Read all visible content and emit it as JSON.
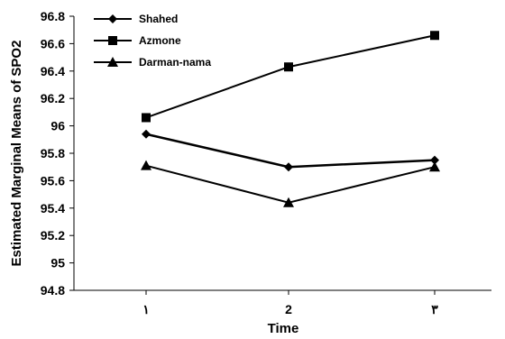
{
  "chart_data": {
    "type": "line",
    "categories": [
      "١",
      "2",
      "٣"
    ],
    "xlabel": "Time",
    "ylabel": "Estimated Marginal Means of SPO2",
    "ylim": [
      94.8,
      96.8
    ],
    "yticks": [
      "94.8",
      "95",
      "95.2",
      "95.4",
      "95.6",
      "95.8",
      "96",
      "96.2",
      "96.4",
      "96.6",
      "96.8"
    ],
    "grid": false,
    "legend_position": "top-left",
    "series": [
      {
        "name": "Shahed",
        "marker": "diamond",
        "values": [
          95.94,
          95.7,
          95.75
        ],
        "color": "#000000"
      },
      {
        "name": "Azmone",
        "marker": "square",
        "values": [
          96.06,
          96.43,
          96.66
        ],
        "color": "#000000"
      },
      {
        "name": "Darman-nama",
        "marker": "triangle",
        "values": [
          95.71,
          95.44,
          95.7
        ],
        "color": "#000000"
      }
    ]
  }
}
